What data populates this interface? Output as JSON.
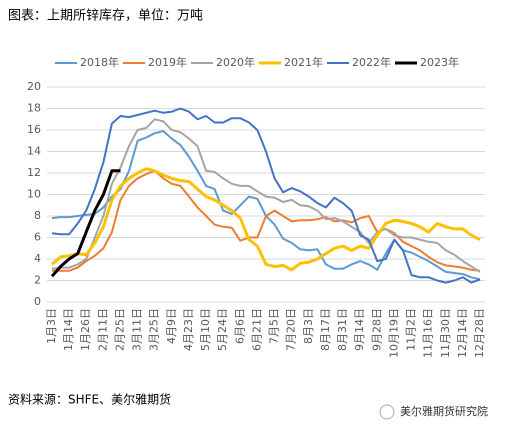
{
  "chart_data": {
    "type": "line",
    "title": "图表：上期所锌库存，单位：万吨",
    "source": "资料来源：SHFE、美尔雅期货",
    "watermark": "美尔雅期货研究院",
    "categories": [
      "1月3日",
      null,
      "1月14日",
      null,
      "1月26日",
      null,
      "2月11日",
      null,
      "2月25日",
      null,
      "3月11日",
      null,
      "3月25日",
      null,
      "4月9日",
      null,
      "4月23日",
      null,
      "5月10日",
      null,
      "5月24日",
      null,
      "6月6日",
      null,
      "6月21日",
      null,
      "7月5日",
      null,
      "7月20日",
      null,
      "8月3日",
      null,
      "8月17日",
      null,
      "8月31日",
      null,
      "9月14日",
      null,
      "9月28日",
      null,
      "10月19日",
      null,
      "11月2日",
      null,
      "11月16日",
      null,
      "11月30日",
      null,
      "12月14日",
      null,
      "12月28日"
    ],
    "ylim": [
      0,
      20
    ],
    "yticks": [
      0,
      2,
      4,
      6,
      8,
      10,
      12,
      14,
      16,
      18,
      20
    ],
    "grid": true,
    "legend": "top",
    "series": [
      {
        "name": "2018年",
        "color": "#5b9bd5",
        "values": [
          7.8,
          7.9,
          7.9,
          8.0,
          8.1,
          8.2,
          8.8,
          9.8,
          10.5,
          12.2,
          15.0,
          15.3,
          15.7,
          15.9,
          15.2,
          14.6,
          13.5,
          12.2,
          10.8,
          10.5,
          8.5,
          8.2,
          9.0,
          9.8,
          9.6,
          8.0,
          7.2,
          5.9,
          5.5,
          4.9,
          4.8,
          4.9,
          3.5,
          3.1,
          3.1,
          3.5,
          3.8,
          3.5,
          3.0,
          4.5,
          5.8,
          4.8,
          4.6,
          4.2,
          3.8,
          3.3,
          2.8,
          2.7,
          2.6,
          2.3,
          2.1
        ]
      },
      {
        "name": "2019年",
        "color": "#ed7d31",
        "values": [
          2.9,
          2.9,
          2.9,
          3.2,
          3.8,
          4.3,
          5.0,
          6.5,
          9.5,
          10.8,
          11.5,
          11.9,
          12.2,
          11.5,
          11.0,
          10.8,
          9.8,
          8.8,
          8.0,
          7.2,
          7.0,
          6.9,
          5.7,
          6.0,
          6.0,
          8.0,
          8.5,
          8.0,
          7.5,
          7.6,
          7.6,
          7.7,
          7.9,
          7.5,
          7.6,
          7.4,
          7.8,
          8.0,
          6.5,
          6.8,
          6.4,
          5.6,
          5.2,
          4.8,
          4.2,
          3.7,
          3.4,
          3.3,
          3.2,
          3.0,
          2.9
        ]
      },
      {
        "name": "2020年",
        "color": "#a5a5a5",
        "values": [
          3.1,
          3.2,
          3.2,
          3.5,
          4.0,
          6.0,
          8.0,
          11.0,
          12.5,
          14.5,
          16.0,
          16.2,
          17.0,
          16.8,
          16.0,
          15.8,
          15.2,
          14.5,
          12.2,
          12.1,
          11.5,
          11.0,
          10.8,
          10.8,
          10.3,
          9.8,
          9.7,
          9.3,
          9.5,
          9.0,
          8.9,
          8.5,
          7.7,
          7.8,
          7.5,
          7.0,
          6.5,
          5.5,
          6.5,
          6.8,
          6.2,
          6.0,
          6.0,
          5.8,
          5.6,
          5.5,
          4.8,
          4.4,
          3.8,
          3.3,
          2.8
        ]
      },
      {
        "name": "2021年",
        "color": "#ffc000",
        "values": [
          3.5,
          4.2,
          4.3,
          4.5,
          4.4,
          5.5,
          7.0,
          9.5,
          10.8,
          11.5,
          12.0,
          12.4,
          12.2,
          11.8,
          11.5,
          11.3,
          11.2,
          10.5,
          9.8,
          9.5,
          9.0,
          8.5,
          7.8,
          5.8,
          5.2,
          3.5,
          3.3,
          3.4,
          3.0,
          3.6,
          3.7,
          4.0,
          4.5,
          5.0,
          5.2,
          4.8,
          5.2,
          5.0,
          6.2,
          7.3,
          7.6,
          7.5,
          7.3,
          7.0,
          6.5,
          7.3,
          7.0,
          6.8,
          6.8,
          6.2,
          5.8
        ]
      },
      {
        "name": "2022年",
        "color": "#4472c4",
        "values": [
          6.4,
          6.3,
          6.3,
          7.3,
          8.5,
          10.5,
          13.0,
          16.6,
          17.3,
          17.2,
          17.4,
          17.6,
          17.8,
          17.6,
          17.7,
          18.0,
          17.7,
          17.0,
          17.3,
          16.7,
          16.7,
          17.1,
          17.1,
          16.7,
          16.0,
          14.0,
          11.5,
          10.2,
          10.6,
          10.3,
          9.8,
          9.2,
          8.8,
          9.7,
          9.2,
          8.5,
          6.2,
          5.8,
          3.8,
          4.0,
          5.8,
          4.8,
          2.5,
          2.3,
          2.3,
          2.0,
          1.8,
          2.0,
          2.3,
          1.8,
          2.1
        ]
      },
      {
        "name": "2023年",
        "color": "#000000",
        "values": [
          2.4,
          3.3,
          4.0,
          4.5,
          6.5,
          8.5,
          10.0,
          12.2,
          12.2,
          null,
          null,
          null,
          null,
          null,
          null,
          null,
          null,
          null,
          null,
          null,
          null,
          null,
          null,
          null,
          null,
          null,
          null,
          null,
          null,
          null,
          null,
          null,
          null,
          null,
          null,
          null,
          null,
          null,
          null,
          null,
          null,
          null,
          null,
          null,
          null,
          null,
          null,
          null,
          null,
          null,
          null
        ]
      }
    ]
  }
}
